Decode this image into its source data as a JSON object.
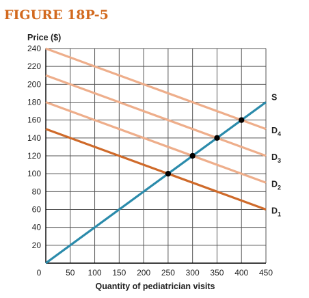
{
  "figure_title": "FIGURE 18P-5",
  "colors": {
    "title": "#d2691e",
    "demand_main": "#cf6a2a",
    "demand_shifted": "#eeae8b",
    "supply": "#2b8bab",
    "grid": "#555555",
    "point": "#000000"
  },
  "chart_data": {
    "type": "line",
    "ylabel": "Price ($)",
    "xlabel": "Quantity of pediatrician visits",
    "xlim": [
      0,
      450
    ],
    "ylim": [
      0,
      240
    ],
    "x_ticks": [
      0,
      50,
      100,
      150,
      200,
      250,
      300,
      350,
      400,
      450
    ],
    "y_ticks": [
      20,
      40,
      60,
      80,
      100,
      120,
      140,
      160,
      180,
      200,
      220,
      240
    ],
    "grid": true,
    "series": [
      {
        "name": "S",
        "label_main": "S",
        "label_sub": "",
        "style": "supply",
        "points": [
          [
            0,
            0
          ],
          [
            450,
            180
          ]
        ]
      },
      {
        "name": "D1",
        "label_main": "D",
        "label_sub": "1",
        "style": "demand_main",
        "points": [
          [
            0,
            150
          ],
          [
            450,
            60
          ]
        ]
      },
      {
        "name": "D2",
        "label_main": "D",
        "label_sub": "2",
        "style": "demand_shifted",
        "points": [
          [
            0,
            180
          ],
          [
            450,
            90
          ]
        ]
      },
      {
        "name": "D3",
        "label_main": "D",
        "label_sub": "3",
        "style": "demand_shifted",
        "points": [
          [
            0,
            210
          ],
          [
            450,
            120
          ]
        ]
      },
      {
        "name": "D4",
        "label_main": "D",
        "label_sub": "4",
        "style": "demand_shifted",
        "points": [
          [
            0,
            240
          ],
          [
            450,
            150
          ]
        ]
      }
    ],
    "equilibrium_points": [
      [
        250,
        100
      ],
      [
        300,
        120
      ],
      [
        350,
        140
      ],
      [
        400,
        160
      ]
    ]
  }
}
